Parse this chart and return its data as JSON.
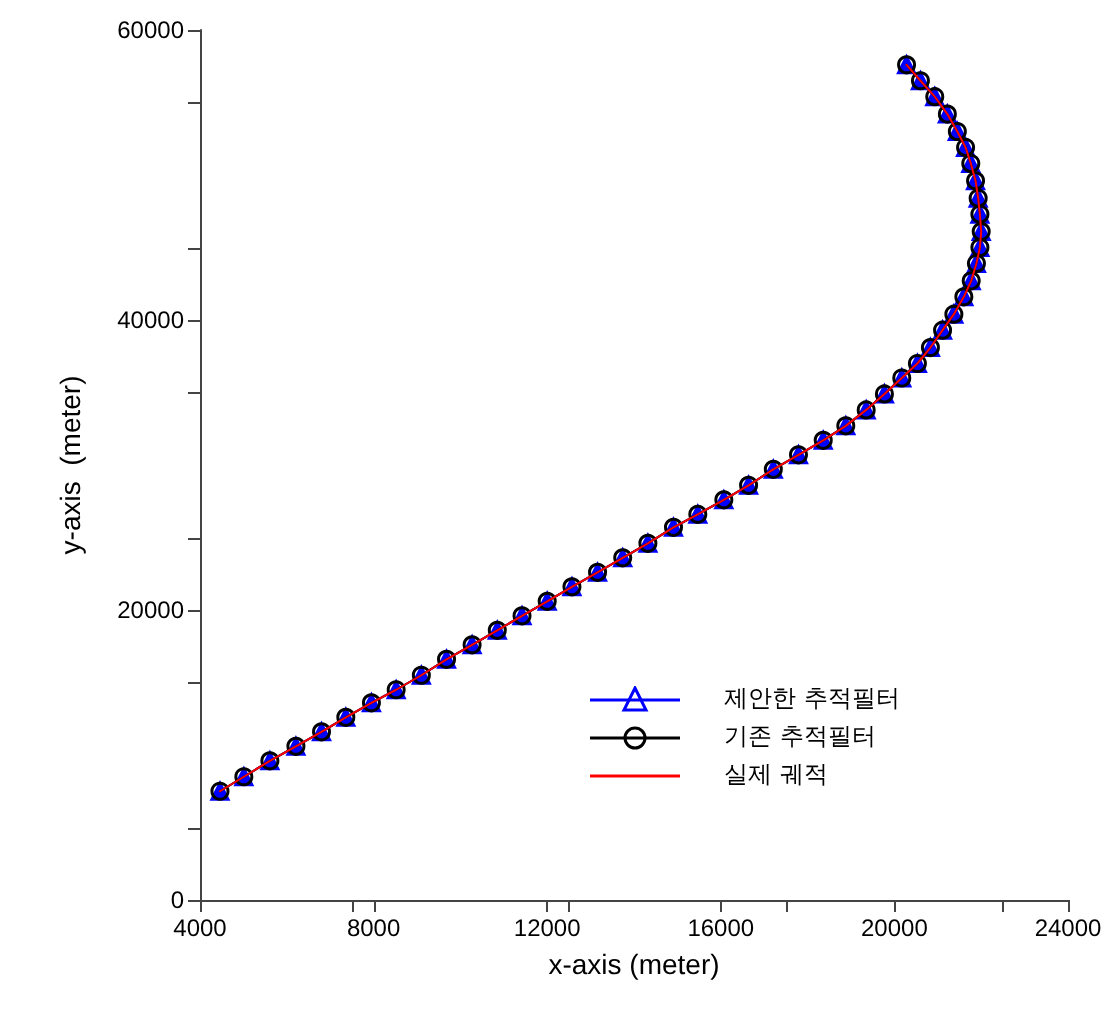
{
  "chart_data": {
    "type": "line",
    "xlabel": "x-axis (meter)",
    "ylabel": "y-axis  (meter)",
    "xlim": [
      4000,
      24000
    ],
    "xticks": [
      4000,
      8000,
      12000,
      16000,
      20000,
      24000
    ],
    "ylim": [
      0,
      60000
    ],
    "yticks": [
      0,
      20000,
      40000,
      60000
    ],
    "x": [
      4460,
      5010,
      5610,
      6210,
      6800,
      7360,
      7950,
      8520,
      9100,
      9680,
      10270,
      10850,
      11420,
      12000,
      12570,
      13160,
      13740,
      14320,
      14910,
      15470,
      16070,
      16640,
      17210,
      17790,
      18360,
      18880,
      19350,
      19770,
      20170,
      20530,
      20830,
      21110,
      21370,
      21600,
      21770,
      21890,
      21970,
      22000,
      21970,
      21930,
      21870,
      21760,
      21640,
      21450,
      21220,
      20930,
      20600,
      20280
    ],
    "series": [
      {
        "name": "제안한 추적필터",
        "color": "#0000ff",
        "marker": "triangle",
        "values": [
          7500,
          8500,
          9600,
          10600,
          11600,
          12600,
          13600,
          14500,
          15500,
          16600,
          17600,
          18600,
          19600,
          20600,
          21600,
          22600,
          23600,
          24600,
          25700,
          26600,
          27600,
          28600,
          29700,
          30700,
          31700,
          32700,
          33800,
          34900,
          36000,
          37000,
          38100,
          39300,
          40400,
          41600,
          42700,
          43900,
          45000,
          46100,
          47300,
          48400,
          49600,
          50800,
          51900,
          53000,
          54200,
          55400,
          56500,
          57600
        ]
      },
      {
        "name": "기존 추적필터",
        "color": "#000000",
        "marker": "circle",
        "values": [
          7500,
          8500,
          9600,
          10600,
          11600,
          12600,
          13600,
          14500,
          15500,
          16600,
          17600,
          18600,
          19600,
          20600,
          21600,
          22600,
          23600,
          24600,
          25700,
          26600,
          27600,
          28600,
          29700,
          30700,
          31700,
          32700,
          33800,
          34900,
          36000,
          37000,
          38100,
          39300,
          40400,
          41600,
          42700,
          43900,
          45000,
          46100,
          47300,
          48400,
          49600,
          50800,
          51900,
          53000,
          54200,
          55400,
          56500,
          57600
        ]
      },
      {
        "name": "실제 궤적",
        "color": "#ff0000",
        "marker": "none",
        "values": [
          7500,
          8500,
          9600,
          10600,
          11600,
          12600,
          13600,
          14500,
          15500,
          16600,
          17600,
          18600,
          19600,
          20600,
          21600,
          22600,
          23600,
          24600,
          25700,
          26600,
          27600,
          28600,
          29700,
          30700,
          31700,
          32700,
          33800,
          34900,
          36000,
          37000,
          38100,
          39300,
          40400,
          41600,
          42700,
          43900,
          45000,
          46100,
          47300,
          48400,
          49600,
          50800,
          51900,
          53000,
          54200,
          55400,
          56500,
          57600
        ]
      }
    ],
    "legend": "bottom right",
    "grid": false
  }
}
